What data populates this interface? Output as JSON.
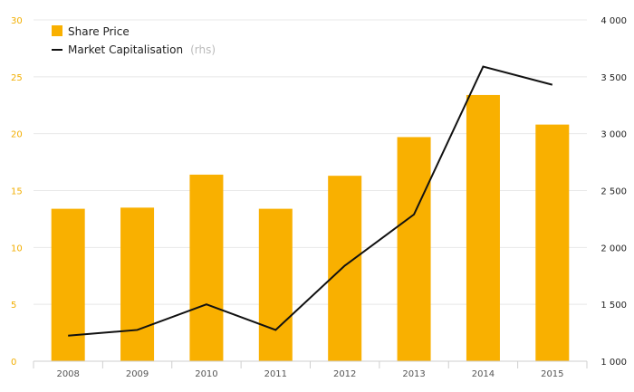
{
  "chart_data": {
    "type": "bar",
    "categories": [
      "2008",
      "2009",
      "2010",
      "2011",
      "2012",
      "2013",
      "2014",
      "2015"
    ],
    "series": [
      {
        "name": "Share Price",
        "type": "bar",
        "axis": "left",
        "color": "#f9b000",
        "values": [
          13.4,
          13.5,
          16.4,
          13.4,
          16.3,
          19.7,
          23.4,
          20.8
        ]
      },
      {
        "name": "Market Capitalisation",
        "name_note": "(rhs)",
        "type": "line",
        "axis": "right",
        "color": "#111111",
        "values": [
          1225,
          1275,
          1500,
          1275,
          1840,
          2290,
          3590,
          3430
        ]
      }
    ],
    "y_left": {
      "ylim": [
        0,
        30
      ],
      "ticks": [
        0,
        5,
        10,
        15,
        20,
        25,
        30
      ],
      "tick_labels": [
        "0",
        "5",
        "10",
        "15",
        "20",
        "25",
        "30"
      ],
      "color": "#f2ae00"
    },
    "y_right": {
      "ylim": [
        1000,
        4000
      ],
      "ticks": [
        1000,
        1500,
        2000,
        2500,
        3000,
        3500,
        4000
      ],
      "tick_labels": [
        "1 000",
        "1 500",
        "2 000",
        "2 500",
        "3 000",
        "3 500",
        "4 000"
      ],
      "color": "#222222"
    },
    "grid": true,
    "legend": "top-left"
  }
}
